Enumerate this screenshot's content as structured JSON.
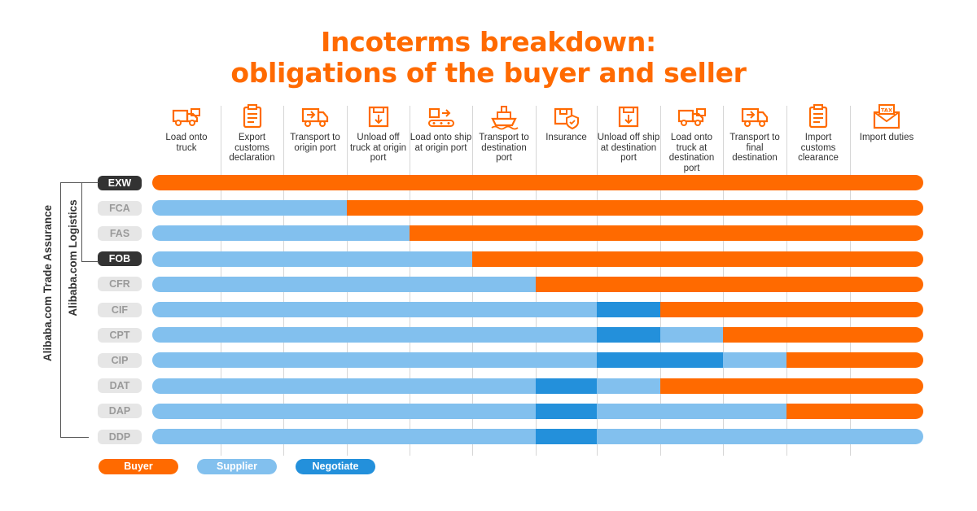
{
  "title": {
    "line1": "Incoterms breakdown:",
    "line2": "obligations of the buyer and seller"
  },
  "colors": {
    "buyer": "#ff6a00",
    "supplier": "#82c0ee",
    "negotiate": "#2390db",
    "accent": "#ff6a00"
  },
  "columns": [
    {
      "icon": "truck-icon",
      "label": "Load onto truck"
    },
    {
      "icon": "clipboard-icon",
      "label": "Export customs declaration"
    },
    {
      "icon": "delivery-truck-icon",
      "label": "Transport to origin port"
    },
    {
      "icon": "unload-box-icon",
      "label": "Unload off truck at origin port"
    },
    {
      "icon": "conveyor-icon",
      "label": "Load onto ship at origin port"
    },
    {
      "icon": "ship-icon",
      "label": "Transport to destination port"
    },
    {
      "icon": "shield-box-icon",
      "label": "Insurance"
    },
    {
      "icon": "unload-box-icon",
      "label": "Unload off ship at destination port"
    },
    {
      "icon": "truck-icon",
      "label": "Load onto truck at destination port"
    },
    {
      "icon": "delivery-truck-icon",
      "label": "Transport to final destination"
    },
    {
      "icon": "clipboard-icon",
      "label": "Import customs clearance"
    },
    {
      "icon": "tax-envelope-icon",
      "label": "Import duties"
    }
  ],
  "terms": [
    {
      "name": "EXW",
      "highlight": true,
      "segments": [
        [
          "buyer",
          0,
          12
        ]
      ]
    },
    {
      "name": "FCA",
      "highlight": false,
      "segments": [
        [
          "supplier",
          0,
          3
        ],
        [
          "buyer",
          3,
          12
        ]
      ]
    },
    {
      "name": "FAS",
      "highlight": false,
      "segments": [
        [
          "supplier",
          0,
          4
        ],
        [
          "buyer",
          4,
          12
        ]
      ]
    },
    {
      "name": "FOB",
      "highlight": true,
      "segments": [
        [
          "supplier",
          0,
          5
        ],
        [
          "buyer",
          5,
          12
        ]
      ]
    },
    {
      "name": "CFR",
      "highlight": false,
      "segments": [
        [
          "supplier",
          0,
          6
        ],
        [
          "buyer",
          6,
          12
        ]
      ]
    },
    {
      "name": "CIF",
      "highlight": false,
      "segments": [
        [
          "supplier",
          0,
          7
        ],
        [
          "negotiate",
          7,
          8
        ],
        [
          "buyer",
          8,
          12
        ]
      ]
    },
    {
      "name": "CPT",
      "highlight": false,
      "segments": [
        [
          "supplier",
          0,
          7
        ],
        [
          "negotiate",
          7,
          8
        ],
        [
          "supplier",
          8,
          9
        ],
        [
          "buyer",
          9,
          12
        ]
      ]
    },
    {
      "name": "CIP",
      "highlight": false,
      "segments": [
        [
          "supplier",
          0,
          7
        ],
        [
          "negotiate",
          7,
          9
        ],
        [
          "supplier",
          9,
          10
        ],
        [
          "buyer",
          10,
          12
        ]
      ]
    },
    {
      "name": "DAT",
      "highlight": false,
      "segments": [
        [
          "supplier",
          0,
          6
        ],
        [
          "negotiate",
          6,
          7
        ],
        [
          "supplier",
          7,
          8
        ],
        [
          "buyer",
          8,
          12
        ]
      ]
    },
    {
      "name": "DAP",
      "highlight": false,
      "segments": [
        [
          "supplier",
          0,
          6
        ],
        [
          "negotiate",
          6,
          7
        ],
        [
          "supplier",
          7,
          10
        ],
        [
          "buyer",
          10,
          12
        ]
      ]
    },
    {
      "name": "DDP",
      "highlight": false,
      "segments": [
        [
          "supplier",
          0,
          6
        ],
        [
          "negotiate",
          6,
          7
        ],
        [
          "supplier",
          7,
          12
        ]
      ]
    }
  ],
  "groups": {
    "trade_assurance": "Alibaba.com Trade Assurance",
    "logistics": "Alibaba.com Logistics"
  },
  "legend": {
    "buyer": "Buyer",
    "supplier": "Supplier",
    "negotiate": "Negotiate"
  }
}
